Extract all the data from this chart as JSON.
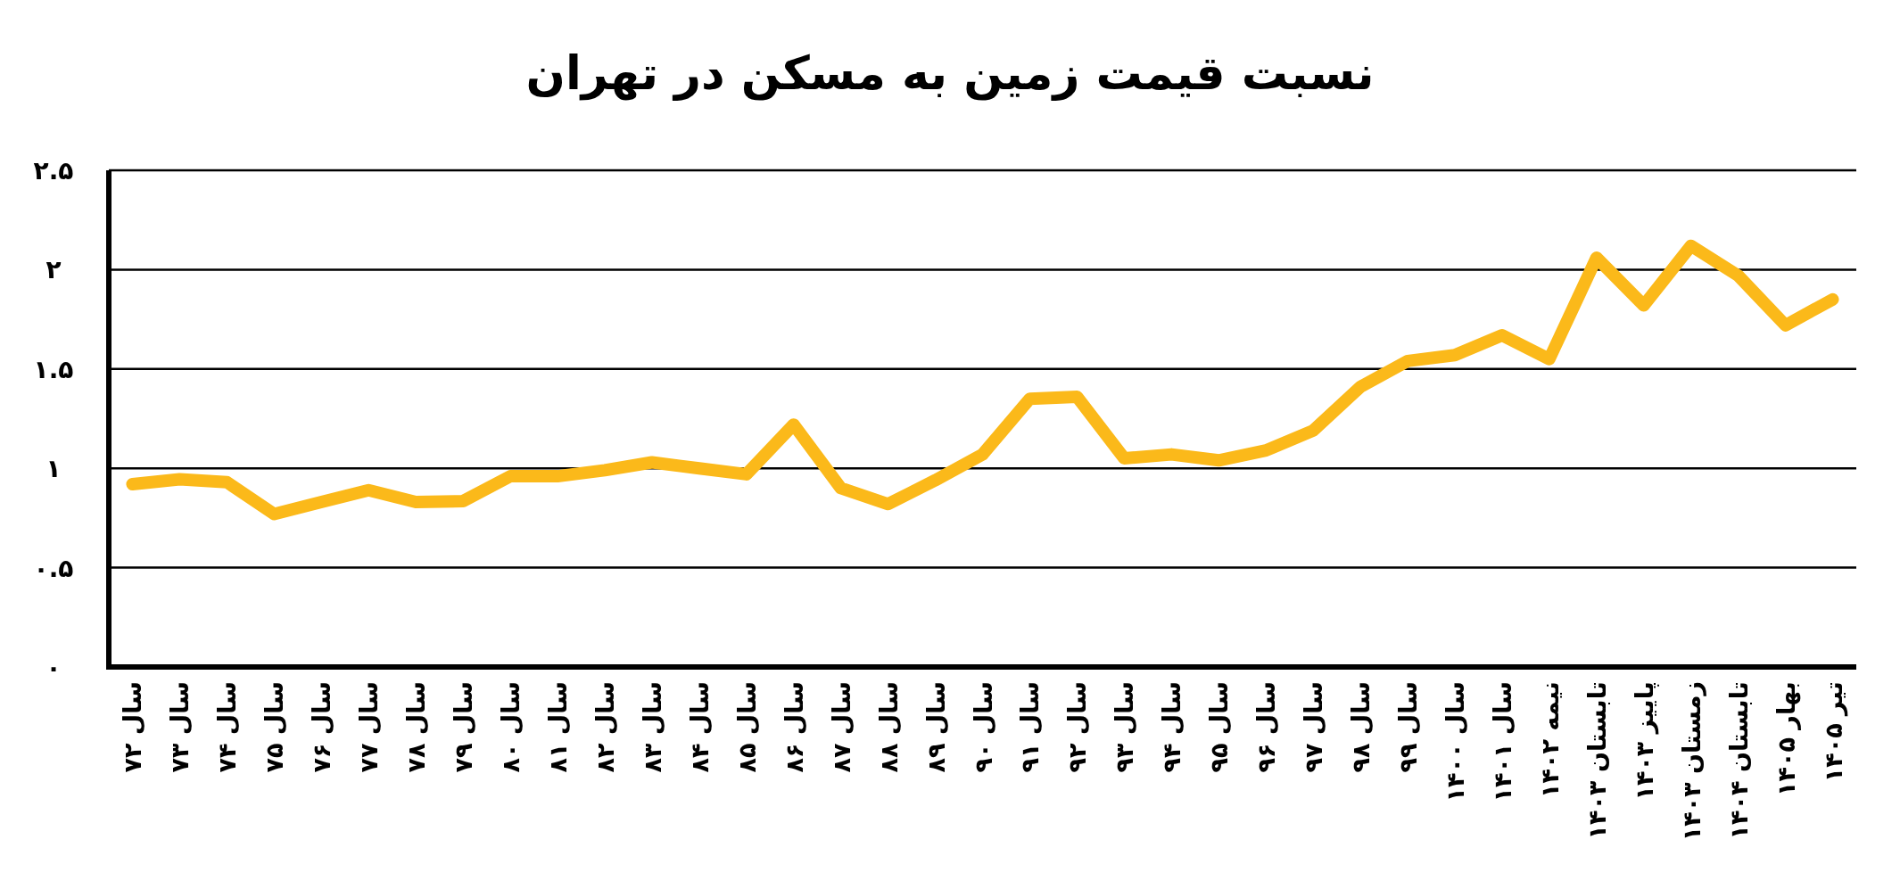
{
  "chart_data": {
    "type": "line",
    "title": "نسبت قیمت زمین به مسکن در تهران",
    "categories": [
      "سال ۷۲",
      "سال ۷۳",
      "سال ۷۴",
      "سال ۷۵",
      "سال ۷۶",
      "سال ۷۷",
      "سال ۷۸",
      "سال ۷۹",
      "سال ۸۰",
      "سال ۸۱",
      "سال ۸۲",
      "سال ۸۳",
      "سال ۸۴",
      "سال ۸۵",
      "سال ۸۶",
      "سال ۸۷",
      "سال ۸۸",
      "سال ۸۹",
      "سال ۹۰",
      "سال ۹۱",
      "سال ۹۲",
      "سال ۹۳",
      "سال ۹۴",
      "سال ۹۵",
      "سال ۹۶",
      "سال ۹۷",
      "سال ۹۸",
      "سال ۹۹",
      "سال ۱۴۰۰",
      "سال ۱۴۰۱",
      "نیمه ۱۴۰۲",
      "تابستان ۱۴۰۳",
      "پاییز ۱۴۰۳",
      "زمستان ۱۴۰۳",
      "تابستان ۱۴۰۴",
      "بهار ۱۴۰۵",
      "تیر ۱۴۰۵"
    ],
    "series": [
      {
        "color": "#fbb91a",
        "values": [
          0.92,
          0.945,
          0.93,
          0.77,
          0.83,
          0.89,
          0.83,
          0.835,
          0.96,
          0.96,
          0.99,
          1.03,
          1.0,
          0.97,
          1.22,
          0.9,
          0.82,
          0.94,
          1.07,
          1.35,
          1.36,
          1.05,
          1.07,
          1.04,
          1.09,
          1.19,
          1.41,
          1.54,
          1.57,
          1.67,
          1.55,
          2.06,
          1.82,
          2.12,
          1.97,
          1.72,
          1.85
        ]
      }
    ],
    "ylim": [
      0,
      2.5
    ],
    "yticks": [
      {
        "value": 0,
        "label": "۰"
      },
      {
        "value": 0.5,
        "label": "۰.۵"
      },
      {
        "value": 1,
        "label": "۱"
      },
      {
        "value": 1.5,
        "label": "۱.۵"
      },
      {
        "value": 2,
        "label": "۲"
      },
      {
        "value": 2.5,
        "label": "۲.۵"
      }
    ],
    "grid": "y",
    "marker": "none",
    "line_style": "solid"
  }
}
